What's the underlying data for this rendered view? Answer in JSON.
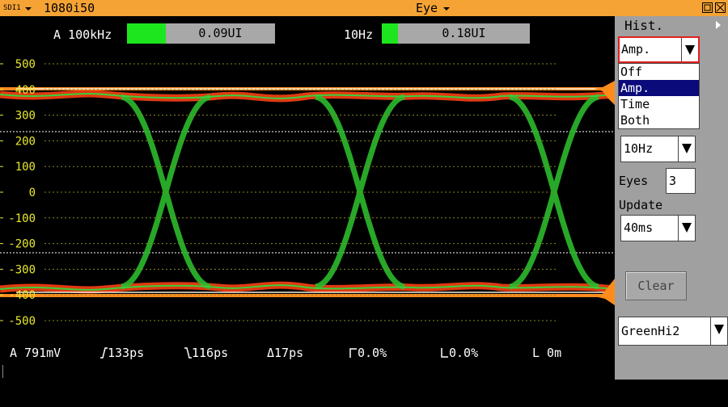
{
  "title_bar": {
    "input": "SDI1",
    "format": "1080i50",
    "mode": "Eye"
  },
  "jitter": {
    "a_label": "A 100kHz",
    "a_value": "0.09UI",
    "b_label": "10Hz",
    "b_value": "0.18UI"
  },
  "plot": {
    "yticks": [
      500,
      400,
      300,
      200,
      100,
      0,
      -100,
      -200,
      -300,
      -400,
      -500
    ]
  },
  "measurements": {
    "amplitude": "A 791mV",
    "rise": "133ps",
    "fall": "116ps",
    "delta": "Δ17ps",
    "overshoot_rise": "0.0%",
    "overshoot_fall": "0.0%",
    "cable": "L 0m"
  },
  "panel": {
    "title": "Hist.",
    "hist_select": "Amp.",
    "hist_options": [
      "Off",
      "Amp.",
      "Time",
      "Both"
    ],
    "filter": "10Hz",
    "eyes_label": "Eyes",
    "eyes_value": "3",
    "update_label": "Update",
    "update_value": "40ms",
    "clear": "Clear",
    "palette": "GreenHi2"
  }
}
